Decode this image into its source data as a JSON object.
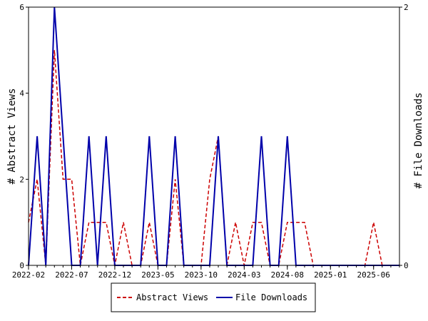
{
  "chart_data": {
    "type": "line",
    "x_ticks": [
      "2022-02",
      "2022-07",
      "2022-12",
      "2023-05",
      "2023-10",
      "2024-03",
      "2024-08",
      "2025-01",
      "2025-06"
    ],
    "x": [
      "2022-02",
      "2022-03",
      "2022-04",
      "2022-05",
      "2022-06",
      "2022-07",
      "2022-08",
      "2022-09",
      "2022-10",
      "2022-11",
      "2022-12",
      "2023-01",
      "2023-02",
      "2023-03",
      "2023-04",
      "2023-05",
      "2023-06",
      "2023-07",
      "2023-08",
      "2023-09",
      "2023-10",
      "2023-11",
      "2023-12",
      "2024-01",
      "2024-02",
      "2024-03",
      "2024-04",
      "2024-05",
      "2024-06",
      "2024-07",
      "2024-08",
      "2024-09",
      "2024-10",
      "2024-11",
      "2024-12",
      "2025-01",
      "2025-02",
      "2025-03",
      "2025-04",
      "2025-05",
      "2025-06",
      "2025-07",
      "2025-08",
      "2025-09"
    ],
    "series": [
      {
        "name": "Abstract Views",
        "axis": "left",
        "color": "#cc0000",
        "style": "dashed",
        "values": [
          1,
          2,
          0,
          5,
          2,
          2,
          0,
          1,
          1,
          1,
          0,
          1,
          0,
          0,
          1,
          0,
          0,
          2,
          0,
          0,
          0,
          2,
          3,
          0,
          1,
          0,
          1,
          1,
          0,
          0,
          1,
          1,
          1,
          0,
          0,
          0,
          0,
          0,
          0,
          0,
          1,
          0,
          0,
          0
        ]
      },
      {
        "name": "File Downloads",
        "axis": "right",
        "color": "#0000aa",
        "style": "solid",
        "values": [
          0,
          1,
          0,
          2,
          1,
          0,
          0,
          1,
          0,
          1,
          0,
          0,
          0,
          0,
          1,
          0,
          0,
          1,
          0,
          0,
          0,
          0,
          1,
          0,
          0,
          0,
          0,
          1,
          0,
          0,
          1,
          0,
          0,
          0,
          0,
          0,
          0,
          0,
          0,
          0,
          0,
          0,
          0,
          0
        ]
      }
    ],
    "ylabel_left": "# Abstract Views",
    "ylabel_right": "# File Downloads",
    "ylim_left": [
      0,
      6
    ],
    "ylim_right": [
      0,
      2
    ],
    "yticks_left": [
      "0",
      "2",
      "4",
      "6"
    ],
    "yticks_right": [
      "0",
      "2"
    ],
    "grid": false,
    "legend_position": "bottom-center"
  }
}
